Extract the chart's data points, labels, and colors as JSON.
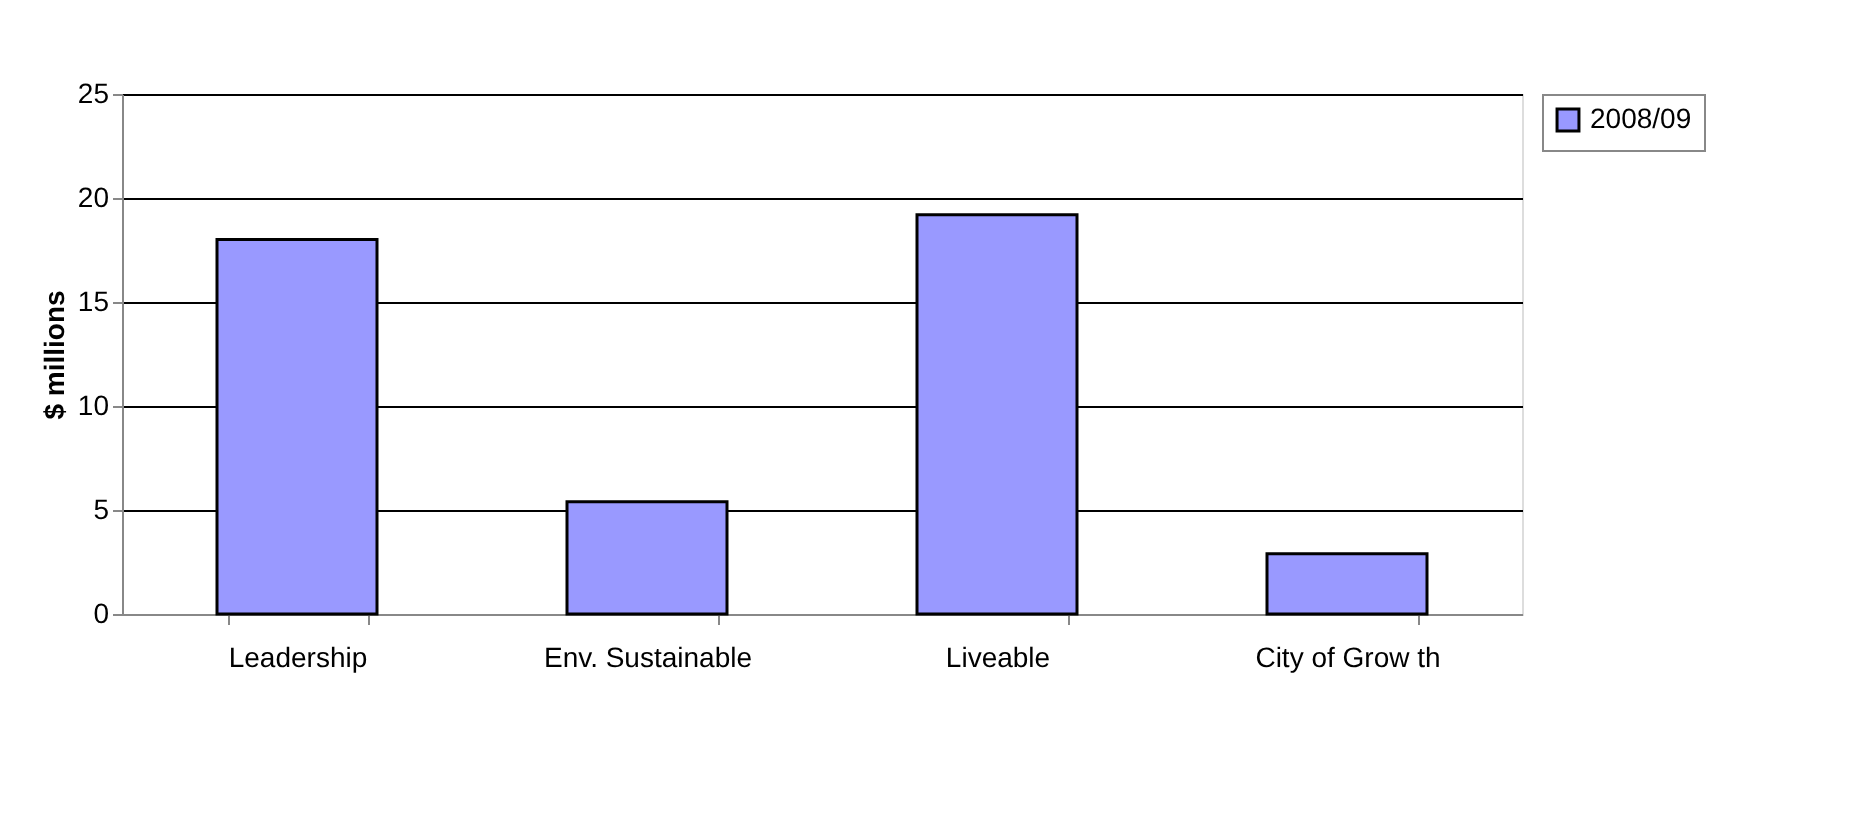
{
  "chart_data": {
    "type": "bar",
    "ylabel": "$ millions",
    "categories": [
      "Leadership",
      "Env. Sustainable",
      "Liveable",
      "City of Grow th"
    ],
    "series": [
      {
        "name": "2008/09",
        "color": "#9999ff",
        "values": [
          18.0,
          5.4,
          19.2,
          2.9
        ]
      }
    ],
    "ylim": [
      0,
      25
    ],
    "yticks": [
      0,
      5,
      10,
      15,
      20,
      25
    ],
    "grid": "y",
    "legend": "right"
  }
}
